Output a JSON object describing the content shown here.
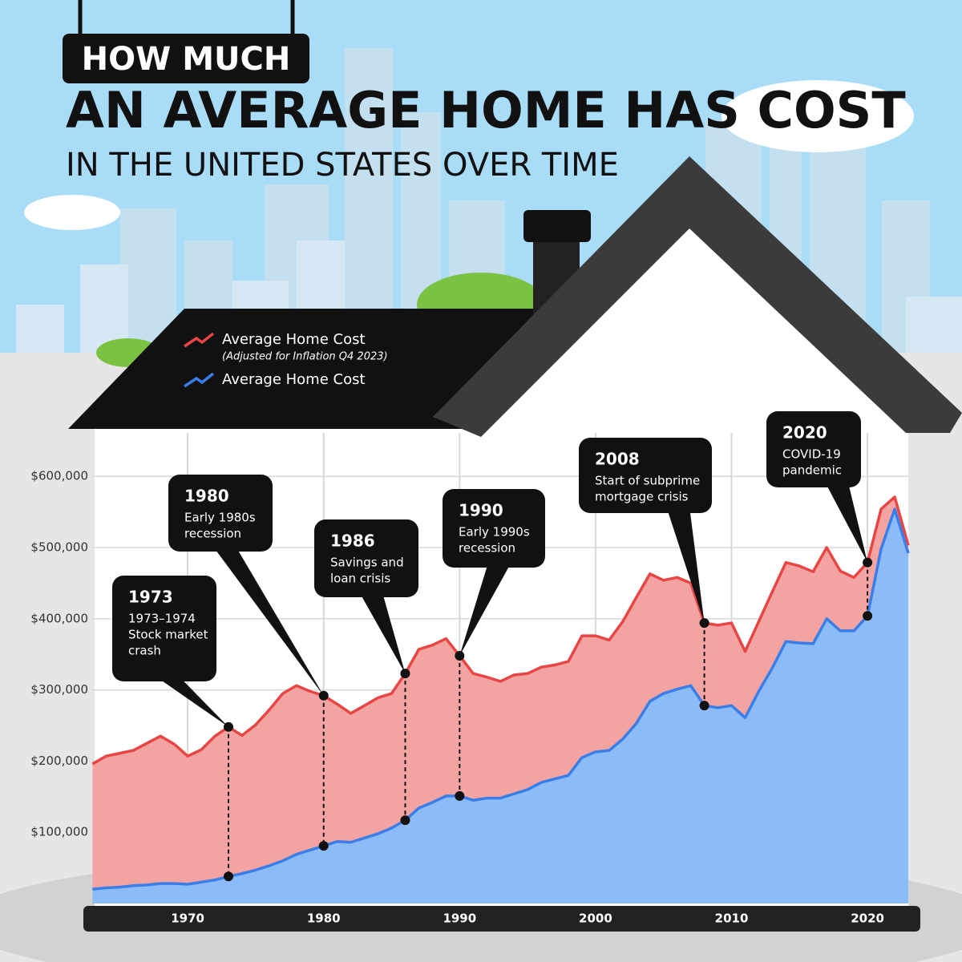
{
  "chart_data": {
    "type": "area",
    "title": "HOW MUCH",
    "title_line2": "AN AVERAGE HOME HAS COST",
    "subtitle": "IN THE UNITED STATES OVER TIME",
    "x": [
      1963,
      1964,
      1965,
      1966,
      1967,
      1968,
      1969,
      1970,
      1971,
      1972,
      1973,
      1974,
      1975,
      1976,
      1977,
      1978,
      1979,
      1980,
      1981,
      1982,
      1983,
      1984,
      1985,
      1986,
      1987,
      1988,
      1989,
      1990,
      1991,
      1992,
      1993,
      1994,
      1995,
      1996,
      1997,
      1998,
      1999,
      2000,
      2001,
      2002,
      2003,
      2004,
      2005,
      2006,
      2007,
      2008,
      2009,
      2010,
      2011,
      2012,
      2013,
      2014,
      2015,
      2016,
      2017,
      2018,
      2019,
      2020,
      2021,
      2022,
      2023
    ],
    "series": [
      {
        "name": "Average Home Cost",
        "note": "(Adjusted for Inflation Q4 2023)",
        "color": "#e84545",
        "fill": "#f4a3a3",
        "values": [
          196000,
          207000,
          211000,
          215000,
          225000,
          235000,
          224000,
          207000,
          216000,
          235000,
          248000,
          236000,
          251000,
          272000,
          295000,
          306000,
          298000,
          292000,
          280000,
          267000,
          278000,
          289000,
          295000,
          323000,
          357000,
          363000,
          372000,
          348000,
          323000,
          318000,
          312000,
          321000,
          323000,
          332000,
          335000,
          340000,
          376000,
          376000,
          370000,
          396000,
          430000,
          463000,
          454000,
          458000,
          450000,
          394000,
          391000,
          394000,
          354000,
          396000,
          438000,
          479000,
          474000,
          466000,
          500000,
          467000,
          458000,
          479000,
          554000,
          571000,
          503000
        ]
      },
      {
        "name": "Average Home Cost",
        "color": "#3a7ee8",
        "fill": "#8bbcf7",
        "values": [
          20000,
          22000,
          23000,
          25000,
          26000,
          28000,
          28000,
          27000,
          30000,
          33000,
          38000,
          42000,
          47000,
          53000,
          60000,
          69000,
          75000,
          81000,
          87000,
          86000,
          92000,
          98000,
          106000,
          117000,
          134000,
          142000,
          151000,
          151000,
          145000,
          148000,
          148000,
          154000,
          160000,
          170000,
          175000,
          180000,
          205000,
          213000,
          215000,
          231000,
          253000,
          284000,
          295000,
          301000,
          306000,
          278000,
          275000,
          278000,
          261000,
          298000,
          331000,
          368000,
          366000,
          365000,
          400000,
          383000,
          383000,
          404000,
          498000,
          554000,
          492000
        ]
      }
    ],
    "xlim": [
      1963,
      2023
    ],
    "xticks": [
      1970,
      1980,
      1990,
      2000,
      2010,
      2020
    ],
    "ylim": [
      0,
      650000
    ],
    "yticks": [
      {
        "value": 100000,
        "label": "$100,000"
      },
      {
        "value": 200000,
        "label": "$200,000"
      },
      {
        "value": 300000,
        "label": "$300,000"
      },
      {
        "value": 400000,
        "label": "$400,000"
      },
      {
        "value": 500000,
        "label": "$500,000"
      },
      {
        "value": 600000,
        "label": "$600,000"
      }
    ],
    "grid": true,
    "annotations": [
      {
        "year": 1973,
        "lines": [
          "1973–1974",
          "Stock market",
          "crash"
        ]
      },
      {
        "year": 1980,
        "lines": [
          "Early 1980s",
          "recession"
        ]
      },
      {
        "year": 1986,
        "lines": [
          "Savings and",
          "loan crisis"
        ]
      },
      {
        "year": 1990,
        "lines": [
          "Early 1990s",
          "recession"
        ]
      },
      {
        "year": 2008,
        "lines": [
          "Start of subprime",
          "mortgage crisis"
        ]
      },
      {
        "year": 2020,
        "lines": [
          "COVID-19",
          "pandemic"
        ]
      }
    ]
  }
}
